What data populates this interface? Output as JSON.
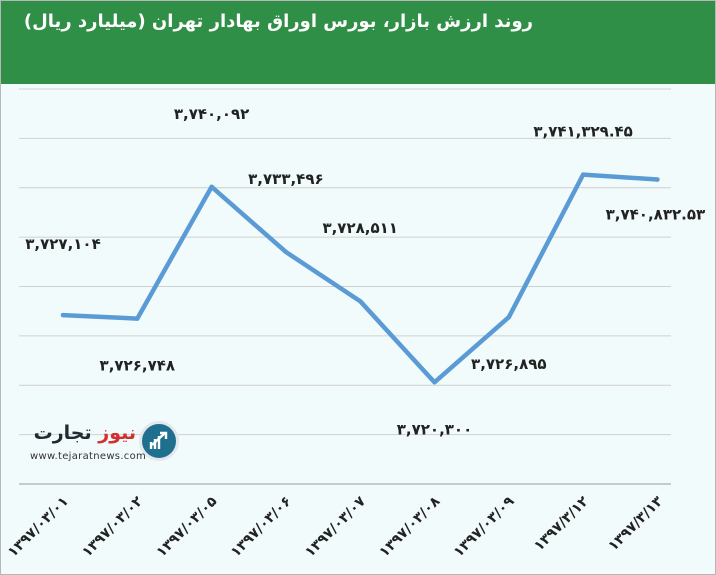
{
  "title": "روند ارزش بازار، بورس اوراق بهادار تهران (میلیارد ریال)",
  "logo": {
    "name_part1": "تجارت",
    "name_part2": "نیوز",
    "url": "www.tejaratnews.com"
  },
  "colors": {
    "header": "#2f8f46",
    "line": "#5b9bd5",
    "background": "#f2fbfb",
    "gridline": "#d0d0d0"
  },
  "chart_data": {
    "type": "line",
    "title": "روند ارزش بازار، بورس اوراق بهادار تهران (میلیارد ریال)",
    "categories": [
      "۱۳۹۷/۰۳/۰۱",
      "۱۳۹۷/۰۳/۰۲",
      "۱۳۹۷/۰۳/۰۵",
      "۱۳۹۷/۰۳/۰۶",
      "۱۳۹۷/۰۳/۰۷",
      "۱۳۹۷/۰۳/۰۸",
      "۱۳۹۷/۰۳/۰۹",
      "۱۳۹۷/۳/۱۲",
      "۱۳۹۷/۳/۱۳"
    ],
    "values": [
      3727104,
      3726748,
      3740092,
      3733496,
      3728511,
      3720300,
      3726895,
      3741329.45,
      3740832.53
    ],
    "data_labels": [
      "۳,۷۲۷,۱۰۴",
      "۳,۷۲۶,۷۴۸",
      "۳,۷۴۰,۰۹۲",
      "۳,۷۳۳,۴۹۶",
      "۳,۷۲۸,۵۱۱",
      "۳,۷۲۰,۳۰۰",
      "۳,۷۲۶,۸۹۵",
      "۳,۷۴۱,۳۲۹.۴۵",
      "۳,۷۴۰,۸۳۲.۵۳"
    ],
    "label_positions": [
      "above",
      "below",
      "above",
      "above",
      "above",
      "below",
      "below",
      "above",
      "below"
    ],
    "ylim": [
      3710000,
      3750000
    ],
    "grid": true,
    "legend": "none"
  }
}
